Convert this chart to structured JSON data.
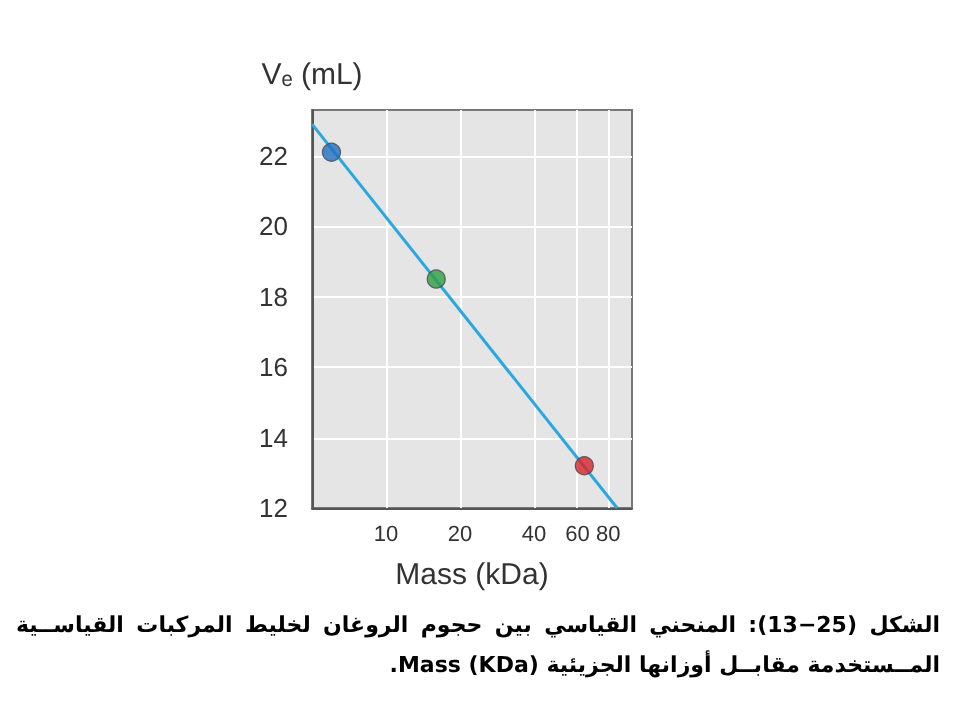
{
  "chart_data": {
    "type": "scatter",
    "xlabel": "Mass (kDa)",
    "ylabel": "Vₑ (mL)",
    "annotations": [
      "الشكل (25−13): المنحني القياسي بين حجوم الروغان لخليط المركبات القياســية المــستخدمة مقابــل أوزانها الجزيئية Mass (KDa)."
    ],
    "series": [
      {
        "x": [
          6,
          16,
          64
        ],
        "values": [
          22.1,
          18.5,
          13.2
        ],
        "colors": [
          "#1f6fc0",
          "#2e9e44",
          "#d8232a"
        ],
        "marker": "circle"
      },
      {
        "type": "line",
        "x": [
          5,
          87
        ],
        "values": [
          22.9,
          12
        ],
        "color": "#29a8e0",
        "marker": "none",
        "line_style": "solid"
      }
    ],
    "log": "x",
    "xlim": [
      5,
      100
    ],
    "xticks": [
      10,
      20,
      40,
      60,
      80
    ],
    "ylim": [
      12,
      23.3
    ],
    "yticks": [
      12,
      14,
      16,
      18,
      20,
      22
    ],
    "grid": true
  }
}
